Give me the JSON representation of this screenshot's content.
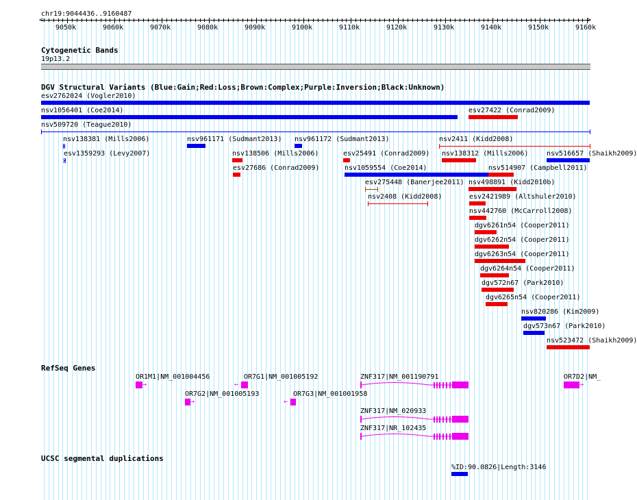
{
  "ruler": {
    "range_label": "chr19:9044436..9160487",
    "ticks": [
      {
        "kb": 9050,
        "label": "9050k"
      },
      {
        "kb": 9060,
        "label": "9060k"
      },
      {
        "kb": 9070,
        "label": "9070k"
      },
      {
        "kb": 9080,
        "label": "9080k"
      },
      {
        "kb": 9090,
        "label": "9090k"
      },
      {
        "kb": 9100,
        "label": "9100k"
      },
      {
        "kb": 9110,
        "label": "9110k"
      },
      {
        "kb": 9120,
        "label": "9120k"
      },
      {
        "kb": 9130,
        "label": "9130k"
      },
      {
        "kb": 9140,
        "label": "9140k"
      },
      {
        "kb": 9150,
        "label": "9150k"
      },
      {
        "kb": 9160,
        "label": "9160k"
      }
    ]
  },
  "tracks": {
    "cytoband": {
      "title": "Cytogenetic Bands",
      "band": "19p13.2"
    },
    "dgv": {
      "title": "DGV Structural Variants (Blue:Gain;Red:Loss;Brown:Complex;Purple:Inversion;Black:Unknown)"
    },
    "refseq": {
      "title": "RefSeq Genes"
    },
    "segdup": {
      "title": "UCSC segmental duplications",
      "label": "%ID:90.0826|Length:3146"
    }
  },
  "colors": {
    "gain": "#0000ee",
    "loss": "#ee0000",
    "gene": "#ee00ee",
    "grid": "#b0e8ff"
  },
  "variants": [
    {
      "label": "esv2762024 (Vogler2010)",
      "type": "gain",
      "style": "bar",
      "start": 9044.4,
      "end": 9160.5,
      "row": 0
    },
    {
      "label": "nsv1056401 (Coe2014)",
      "type": "gain",
      "style": "bar",
      "start": 9044.4,
      "end": 9132.5,
      "row": 1
    },
    {
      "label": "esv27422 (Conrad2009)",
      "type": "loss",
      "style": "bar",
      "start": 9134.8,
      "end": 9145.3,
      "row": 1
    },
    {
      "label": "nsv509720 (Teague2010)",
      "type": "gain",
      "style": "line",
      "start": 9044.4,
      "end": 9160.5,
      "row": 2
    },
    {
      "label": "nsv138381 (Mills2006)",
      "type": "gain",
      "style": "line",
      "start": 9049.1,
      "end": 9049.3,
      "row": 3
    },
    {
      "label": "nsv961171 (Sudmant2013)",
      "type": "gain",
      "style": "bar",
      "start": 9075.3,
      "end": 9079.2,
      "row": 3
    },
    {
      "label": "nsv961172 (Sudmant2013)",
      "type": "gain",
      "style": "bar",
      "start": 9098.0,
      "end": 9099.7,
      "row": 3
    },
    {
      "label": "nsv2411 (Kidd2008)",
      "type": "loss",
      "style": "line",
      "start": 9128.7,
      "end": 9160.5,
      "row": 3
    },
    {
      "label": "esv1359293 (Levy2007)",
      "type": "gain",
      "style": "line",
      "start": 9049.2,
      "end": 9049.4,
      "row": 4
    },
    {
      "label": "nsv138506 (Mills2006)",
      "type": "loss",
      "style": "bar",
      "start": 9084.8,
      "end": 9087.0,
      "row": 4
    },
    {
      "label": "esv25491 (Conrad2009)",
      "type": "loss",
      "style": "bar",
      "start": 9108.4,
      "end": 9109.8,
      "row": 4
    },
    {
      "label": "nsv138312 (Mills2006)",
      "type": "loss",
      "style": "bar",
      "start": 9129.2,
      "end": 9136.4,
      "row": 4
    },
    {
      "label": "nsv516657 (Shaikh2009)",
      "type": "gain",
      "style": "bar",
      "start": 9151.4,
      "end": 9160.5,
      "row": 4
    },
    {
      "label": "esv27686 (Conrad2009)",
      "type": "loss",
      "style": "bar",
      "start": 9085.0,
      "end": 9086.6,
      "row": 5
    },
    {
      "label": "nsv1059554 (Coe2014)",
      "type": "gain",
      "style": "bar",
      "start": 9108.7,
      "end": 9139.5,
      "row": 5
    },
    {
      "label": "nsv514907 (Campbell2011)",
      "type": "loss",
      "style": "bar",
      "start": 9139.1,
      "end": 9144.5,
      "row": 5
    },
    {
      "label": "esv275448 (Banerjee2011)",
      "type": "brown",
      "style": "line",
      "start": 9113.0,
      "end": 9115.6,
      "row": 6
    },
    {
      "label": "nsv498891 (Kidd2010b)",
      "type": "loss",
      "style": "bar",
      "start": 9134.9,
      "end": 9145.0,
      "row": 6
    },
    {
      "label": "nsv2408 (Kidd2008)",
      "type": "loss",
      "style": "line",
      "start": 9113.6,
      "end": 9126.2,
      "row": 7
    },
    {
      "label": "esv2421989 (Altshuler2010)",
      "type": "loss",
      "style": "bar",
      "start": 9135.0,
      "end": 9138.5,
      "row": 7
    },
    {
      "label": "nsv442760 (McCarroll2008)",
      "type": "loss",
      "style": "bar",
      "start": 9135.0,
      "end": 9138.7,
      "row": 8
    },
    {
      "label": "dgv6261n54 (Cooper2011)",
      "type": "loss",
      "style": "bar",
      "start": 9136.2,
      "end": 9140.8,
      "row": 9
    },
    {
      "label": "dgv6262n54 (Cooper2011)",
      "type": "loss",
      "style": "bar",
      "start": 9136.2,
      "end": 9143.4,
      "row": 10
    },
    {
      "label": "dgv6263n54 (Cooper2011)",
      "type": "loss",
      "style": "bar",
      "start": 9136.2,
      "end": 9146.9,
      "row": 11
    },
    {
      "label": "dgv6264n54 (Cooper2011)",
      "type": "loss",
      "style": "bar",
      "start": 9137.4,
      "end": 9143.4,
      "row": 12
    },
    {
      "label": "dgv572n67 (Park2010)",
      "type": "loss",
      "style": "bar",
      "start": 9137.6,
      "end": 9144.5,
      "row": 13
    },
    {
      "label": "dgv6265n54 (Cooper2011)",
      "type": "loss",
      "style": "bar",
      "start": 9138.5,
      "end": 9143.1,
      "row": 14
    },
    {
      "label": "nsv820286 (Kim2009)",
      "type": "gain",
      "style": "bar",
      "start": 9146.1,
      "end": 9151.2,
      "row": 15
    },
    {
      "label": "dgv573n67 (Park2010)",
      "type": "gain",
      "style": "bar",
      "start": 9146.5,
      "end": 9150.9,
      "row": 16
    },
    {
      "label": "nsv523472 (Shaikh2009)",
      "type": "loss",
      "style": "bar",
      "start": 9151.4,
      "end": 9160.5,
      "row": 17
    }
  ],
  "genes": [
    {
      "label": "OR1M1|NM_001004456",
      "row": 0,
      "strand": "+",
      "start": 9064.4,
      "end": 9065.9,
      "label_at": 9064.4
    },
    {
      "label": "OR7G1|NM_001005192",
      "row": 0,
      "strand": "-",
      "start": 9086.8,
      "end": 9088.2,
      "label_at": 9087.4
    },
    {
      "label": "ZNF317|NM_001190791",
      "row": 0,
      "strand": "+",
      "start": 9112.0,
      "end": 9134.9,
      "label_at": 9112.0,
      "intron_style": true
    },
    {
      "label": "OR7D2|NM_",
      "row": 0,
      "strand": "+",
      "start": 9155.0,
      "end": 9158.4,
      "label_at": 9155.0
    },
    {
      "label": "OR7G2|NM_001005193",
      "row": 1,
      "strand": "+",
      "start": 9074.9,
      "end": 9076.1,
      "label_at": 9074.9
    },
    {
      "label": "OR7G3|NM_001001958",
      "row": 1,
      "strand": "-",
      "start": 9097.2,
      "end": 9098.4,
      "label_at": 9097.8
    },
    {
      "label": "ZNF317|NM_020933",
      "row": 2,
      "strand": "+",
      "start": 9112.0,
      "end": 9134.9,
      "label_at": 9112.0,
      "intron_style": true
    },
    {
      "label": "ZNF317|NR_102435",
      "row": 3,
      "strand": "+",
      "start": 9112.0,
      "end": 9134.9,
      "label_at": 9112.0,
      "intron_style": true
    }
  ],
  "segdups": [
    {
      "start": 9131.3,
      "end": 9134.7
    }
  ]
}
